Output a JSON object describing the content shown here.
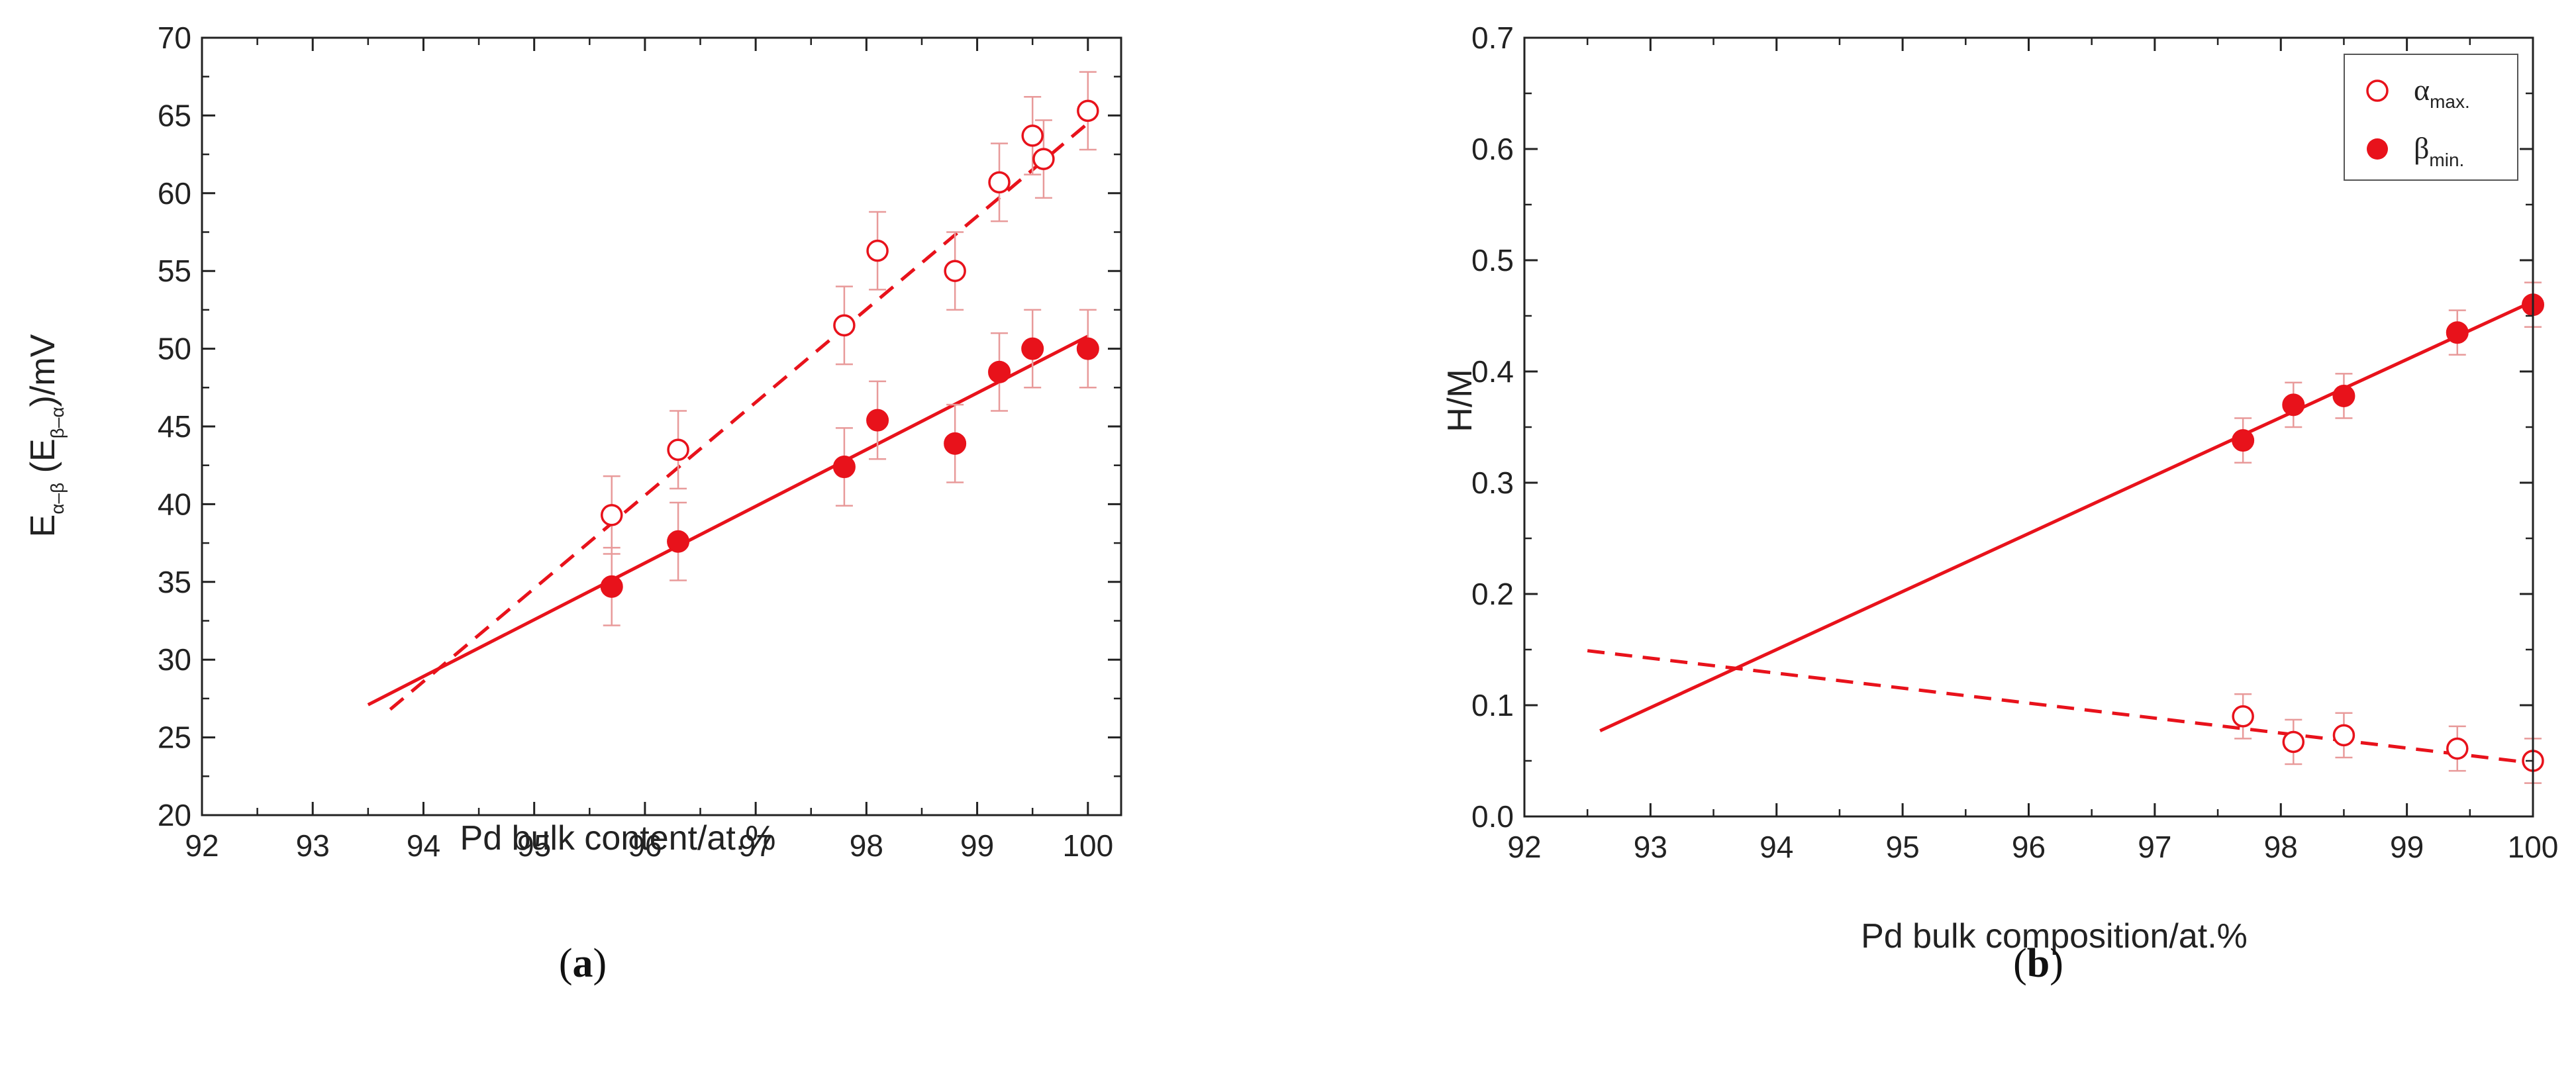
{
  "colors": {
    "series": "#e8121b",
    "errorbar": "#e89a9a",
    "axis": "#222222"
  },
  "chart_data": [
    {
      "id": "a",
      "type": "scatter",
      "panel_label": {
        "open": "(",
        "letter": "a",
        "close": ")"
      },
      "xlabel": "Pd bulk content/at.%",
      "ylabel": {
        "main": "E",
        "sub1": "α–β",
        "mid": " (E",
        "sub2": "β–α",
        "tail": ")/mV"
      },
      "xlim": [
        92,
        100.3
      ],
      "ylim": [
        20,
        70
      ],
      "xticks": [
        92,
        93,
        94,
        95,
        96,
        97,
        98,
        99,
        100
      ],
      "yticks": [
        20,
        25,
        30,
        35,
        40,
        45,
        50,
        55,
        60,
        65,
        70
      ],
      "series": [
        {
          "name": "alpha-beta (open)",
          "marker": "open-circle",
          "x": [
            95.7,
            96.3,
            97.8,
            98.1,
            98.8,
            99.2,
            99.5,
            99.6,
            100
          ],
          "y": [
            39.3,
            43.5,
            51.5,
            56.3,
            55.0,
            60.7,
            63.7,
            62.2,
            65.3
          ],
          "err": [
            2.5,
            2.5,
            2.5,
            2.5,
            2.5,
            2.5,
            2.5,
            2.5,
            2.5
          ],
          "fit": {
            "style": "dashed",
            "x": [
              93.7,
              100
            ],
            "y": [
              26.8,
              64.5
            ]
          }
        },
        {
          "name": "beta-alpha (filled)",
          "marker": "filled-circle",
          "x": [
            95.7,
            96.3,
            97.8,
            98.1,
            98.8,
            99.2,
            99.5,
            100
          ],
          "y": [
            34.7,
            37.6,
            42.4,
            45.4,
            43.9,
            48.5,
            50.0,
            50.0
          ],
          "err": [
            2.5,
            2.5,
            2.5,
            2.5,
            2.5,
            2.5,
            2.5,
            2.5
          ],
          "fit": {
            "style": "solid",
            "x": [
              93.5,
              100
            ],
            "y": [
              27.1,
              50.8
            ]
          }
        }
      ]
    },
    {
      "id": "b",
      "type": "scatter",
      "panel_label": {
        "open": "(",
        "letter": "b",
        "close": ")"
      },
      "xlabel": "Pd bulk composition/at.%",
      "ylabel": {
        "main": "H/M"
      },
      "xlim": [
        92,
        100
      ],
      "ylim": [
        0,
        0.7
      ],
      "xticks": [
        92,
        93,
        94,
        95,
        96,
        97,
        98,
        99,
        100
      ],
      "yticks": [
        0.0,
        0.1,
        0.2,
        0.3,
        0.4,
        0.5,
        0.6,
        0.7
      ],
      "ytick_labels": [
        "0.0",
        "0.1",
        "0.2",
        "0.3",
        "0.4",
        "0.5",
        "0.6",
        "0.7"
      ],
      "legend": {
        "position": "top-right",
        "entries": [
          {
            "marker": "open-circle",
            "symbol": "α",
            "sub": "max."
          },
          {
            "marker": "filled-circle",
            "symbol": "β",
            "sub": "min."
          }
        ]
      },
      "series": [
        {
          "name": "alpha max.",
          "marker": "open-circle",
          "x": [
            97.7,
            98.1,
            98.5,
            99.4,
            100
          ],
          "y": [
            0.09,
            0.067,
            0.073,
            0.061,
            0.05
          ],
          "err": [
            0.02,
            0.02,
            0.02,
            0.02,
            0.02
          ],
          "fit": {
            "style": "dashed",
            "x": [
              92.5,
              100
            ],
            "y": [
              0.149,
              0.048
            ]
          }
        },
        {
          "name": "beta min.",
          "marker": "filled-circle",
          "x": [
            97.7,
            98.1,
            98.5,
            99.4,
            100
          ],
          "y": [
            0.338,
            0.37,
            0.378,
            0.435,
            0.46
          ],
          "err": [
            0.02,
            0.02,
            0.02,
            0.02,
            0.02
          ],
          "fit": {
            "style": "solid",
            "x": [
              92.6,
              100
            ],
            "y": [
              0.077,
              0.463
            ]
          }
        }
      ]
    }
  ]
}
